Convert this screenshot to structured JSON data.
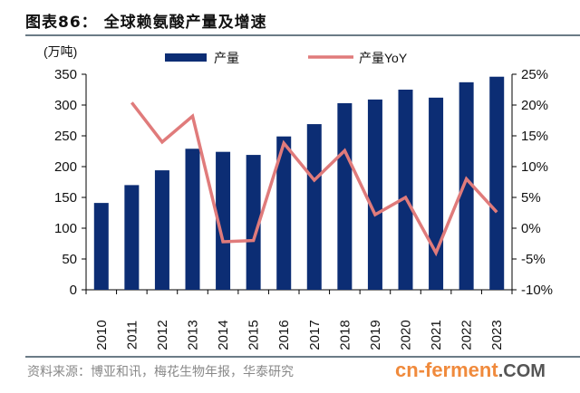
{
  "title": "图表86：  全球赖氨酸产量及增速",
  "source": "资料来源：博亚和讯，梅花生物年报，华泰研究",
  "watermark": {
    "main": "cn-ferment",
    "suffix": ".COM"
  },
  "chart_data": {
    "type": "bar+line",
    "title": "全球赖氨酸产量及增速",
    "ylabel": "(万吨)",
    "categories": [
      "2010",
      "2011",
      "2012",
      "2013",
      "2014",
      "2015",
      "2016",
      "2017",
      "2018",
      "2019",
      "2020",
      "2021",
      "2022",
      "2023"
    ],
    "series": [
      {
        "name": "产量",
        "type": "bar",
        "axis": "left",
        "color": "#0c2d74",
        "values": [
          141,
          170,
          194,
          229,
          224,
          219,
          249,
          269,
          303,
          309,
          325,
          312,
          337,
          346
        ]
      },
      {
        "name": "产量YoY",
        "type": "line",
        "axis": "right",
        "color": "#e07b7b",
        "values": [
          null,
          20.4,
          14.0,
          18.2,
          -2.2,
          -2.0,
          13.8,
          7.8,
          12.6,
          2.2,
          5.0,
          -4.0,
          8.0,
          2.6
        ]
      }
    ],
    "ylim": [
      0,
      350
    ],
    "yticks": [
      "0",
      "50",
      "100",
      "150",
      "200",
      "250",
      "300",
      "350"
    ],
    "y2lim": [
      -10,
      25
    ],
    "y2ticks": [
      "-10%",
      "-5%",
      "0%",
      "5%",
      "10%",
      "15%",
      "20%",
      "25%"
    ],
    "legend": "top-center",
    "grid": false
  }
}
